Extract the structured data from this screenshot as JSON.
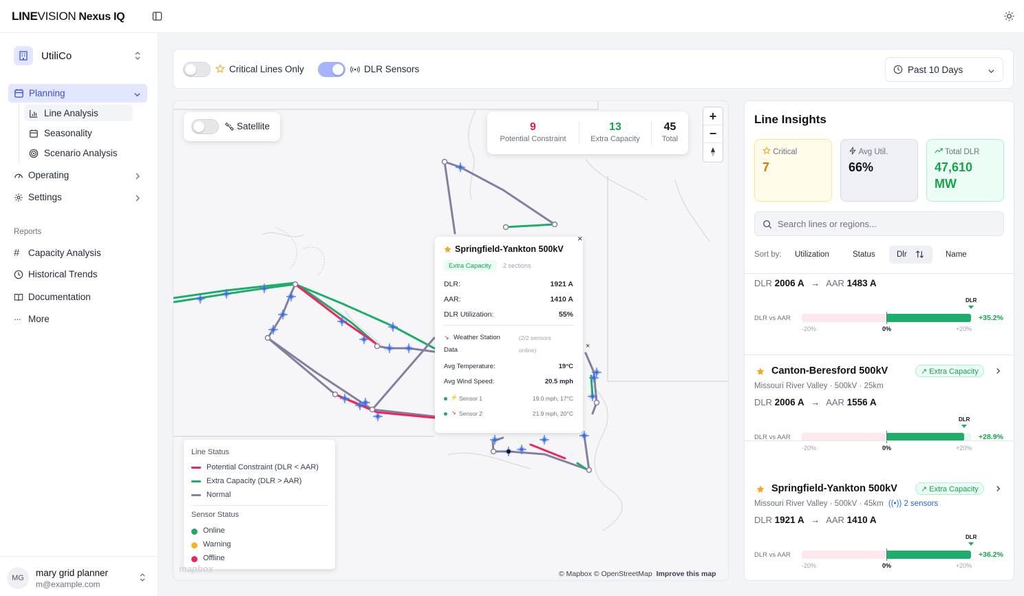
{
  "header": {
    "logo_bold": "LINE",
    "logo_regular": "VISION",
    "product": "Nexus IQ"
  },
  "sidebar": {
    "org": "UtiliCo",
    "planning": "Planning",
    "planning_items": [
      "Line Analysis",
      "Seasonality",
      "Scenario Analysis"
    ],
    "operating": "Operating",
    "settings": "Settings",
    "reports_heading": "Reports",
    "reports": [
      "Capacity Analysis",
      "Historical Trends",
      "Documentation",
      "More"
    ],
    "user": {
      "initials": "MG",
      "name": "mary grid planner",
      "email": "m@example.com"
    }
  },
  "toolbar": {
    "critical_label": "Critical Lines Only",
    "dlr_label": "DLR Sensors",
    "range": "Past 10 Days"
  },
  "map": {
    "satellite_label": "Satellite",
    "stats": [
      {
        "value": "9",
        "label": "Potential Constraint",
        "color": "#e11d48"
      },
      {
        "value": "13",
        "label": "Extra Capacity",
        "color": "#16a34a"
      },
      {
        "value": "45",
        "label": "Total",
        "color": "#111827"
      }
    ],
    "zoom_in": "+",
    "zoom_out": "−",
    "attribution": "© Mapbox © OpenStreetMap",
    "improve": "Improve this map",
    "legend": {
      "line_title": "Line Status",
      "lines": [
        {
          "label": "Potential Constraint (DLR < AAR)",
          "color": "#f0245f"
        },
        {
          "label": "Extra Capacity (DLR > AAR)",
          "color": "#1ead6b"
        },
        {
          "label": "Normal",
          "color": "#8280a0"
        }
      ],
      "sensor_title": "Sensor Status",
      "sensors": [
        {
          "label": "Online",
          "color": "#22a86a"
        },
        {
          "label": "Warning",
          "color": "#f5b323"
        },
        {
          "label": "Offline",
          "color": "#f0245f"
        }
      ]
    },
    "popup": {
      "title": "Springfield-Yankton 500kV",
      "badge": "Extra Capacity",
      "sections": "2 sections",
      "close": "×",
      "rows": [
        {
          "label": "DLR:",
          "value": "1921 A"
        },
        {
          "label": "AAR:",
          "value": "1410 A"
        },
        {
          "label": "DLR Utilization:",
          "value": "55%"
        }
      ],
      "weather_title": "Weather Station",
      "weather_title2": "Data",
      "weather_note": "(2/2 sensors",
      "weather_note2": "online)",
      "temp_label": "Avg Temperature:",
      "temp": "19°C",
      "wind_label": "Avg Wind Speed:",
      "wind": "20.5 mph",
      "sensors": [
        {
          "name": "Sensor 1",
          "value": "19.0 mph, 17°C"
        },
        {
          "name": "Sensor 2",
          "value": "21.9 mph, 20°C"
        }
      ]
    }
  },
  "insights": {
    "title": "Line Insights",
    "kpis": [
      {
        "label": "Critical",
        "value": "7"
      },
      {
        "label": "Avg Util.",
        "value": "66%"
      },
      {
        "label": "Total DLR",
        "value": "47,610",
        "value2": "MW"
      }
    ],
    "search_placeholder": "Search lines or regions...",
    "sort_label": "Sort by:",
    "sort_options": [
      "Utilization",
      "Status",
      "Dlr",
      "Name"
    ],
    "cards": [
      {
        "name": "",
        "region": "",
        "dlr": "2006 A",
        "aar": "1483 A",
        "delta": "+35.2%",
        "fill": 0.352
      },
      {
        "name": "Canton-Beresford 500kV",
        "badge": "Extra Capacity",
        "region": "Missouri River Valley · 500kV · 25km",
        "dlr": "2006 A",
        "aar": "1556 A",
        "delta": "+28.9%",
        "fill": 0.289
      },
      {
        "name": "Springfield-Yankton 500kV",
        "badge": "Extra Capacity",
        "region": "Missouri River Valley · 500kV · 45km",
        "sensors": "2 sensors",
        "dlr": "1921 A",
        "aar": "1410 A",
        "delta": "+36.2%",
        "fill": 0.362
      }
    ],
    "dlr_word": "DLR",
    "aar_word": "AAR",
    "dlr_vs_aar": "DLR vs AAR",
    "ticks": [
      "-20%",
      "0%",
      "+20%"
    ],
    "marker": "DLR"
  }
}
